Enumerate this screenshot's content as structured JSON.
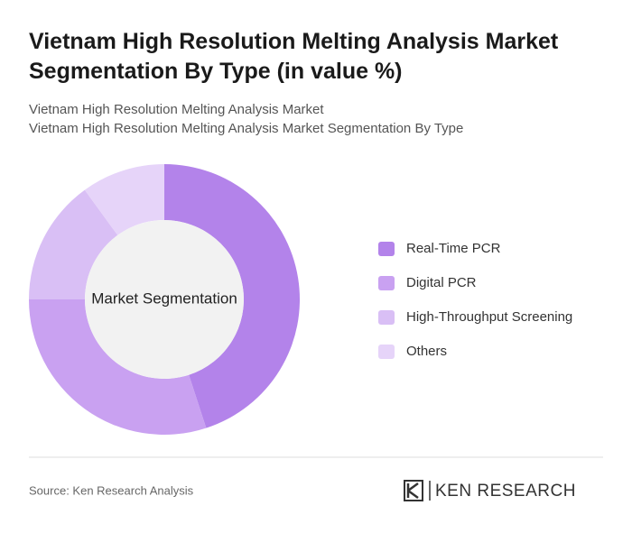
{
  "chart_data": {
    "type": "donut",
    "title": "Vietnam High Resolution Melting Analysis Market Segmentation By Type (in value %)",
    "subtitle": [
      "Vietnam High Resolution Melting Analysis Market",
      "Vietnam High Resolution Melting Analysis Market Segmentation By Type"
    ],
    "center_label": "Market Segmentation",
    "categories": [
      "Real-Time PCR",
      "Digital PCR",
      "High-Throughput Screening",
      "Others"
    ],
    "values": [
      45,
      30,
      15,
      10
    ],
    "colors": [
      "#b383ea",
      "#c9a1f1",
      "#d9bff5",
      "#e6d4f9"
    ]
  },
  "footer": {
    "source": "Source: Ken Research Analysis",
    "brand": "KEN RESEARCH"
  }
}
